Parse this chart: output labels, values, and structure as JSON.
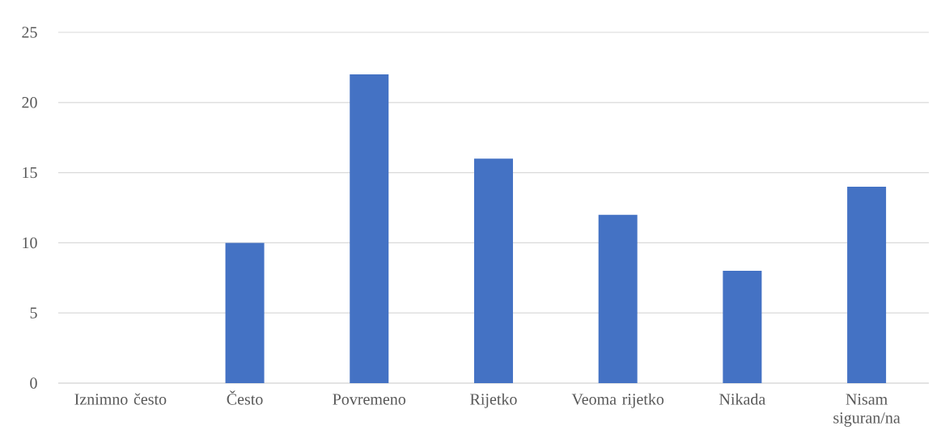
{
  "chart_data": {
    "type": "bar",
    "categories": [
      "Iznimno često",
      "Često",
      "Povremeno",
      "Rijetko",
      "Veoma rijetko",
      "Nikada",
      "Nisam siguran/na"
    ],
    "values": [
      0,
      10,
      22,
      16,
      12,
      8,
      14
    ],
    "color": "#4472c4",
    "ylim": [
      0,
      25
    ],
    "yticks": [
      0,
      5,
      10,
      15,
      20,
      25
    ],
    "grid": "y"
  }
}
